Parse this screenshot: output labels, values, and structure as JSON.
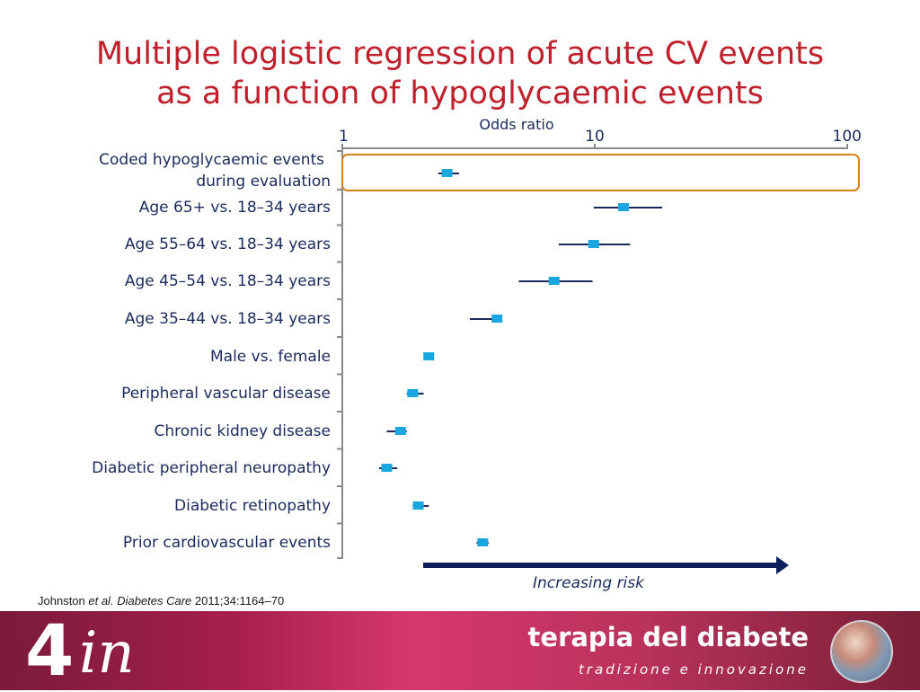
{
  "title": {
    "line1": "Multiple logistic regression of acute CV events",
    "line2": "as a function of hypoglycaemic events"
  },
  "chart_data": {
    "type": "forest",
    "xlabel": "Odds ratio",
    "xscale": "log",
    "xlim": [
      1,
      100
    ],
    "xticks": [
      "1",
      "10",
      "100"
    ],
    "rows": [
      {
        "label": [
          "Coded hypoglycaemic events",
          "during evaluation"
        ],
        "or": 2.6,
        "ci": [
          2.4,
          2.9
        ],
        "highlight": true
      },
      {
        "label": [
          "Age 65+ vs. 18–34 years"
        ],
        "or": 13.0,
        "ci": [
          9.9,
          18.5
        ]
      },
      {
        "label": [
          "Age 55–64 vs. 18–34 years"
        ],
        "or": 9.9,
        "ci": [
          7.2,
          13.8
        ]
      },
      {
        "label": [
          "Age 45–54 vs. 18–34 years"
        ],
        "or": 6.9,
        "ci": [
          5.0,
          9.8
        ]
      },
      {
        "label": [
          "Age 35–44 vs. 18–34 years"
        ],
        "or": 4.1,
        "ci": [
          3.2,
          4.3
        ]
      },
      {
        "label": [
          "Male vs. female"
        ],
        "or": 2.2,
        "ci": [
          2.1,
          2.3
        ]
      },
      {
        "label": [
          "Peripheral vascular disease"
        ],
        "or": 1.9,
        "ci": [
          1.8,
          2.1
        ]
      },
      {
        "label": [
          "Chronic kidney disease"
        ],
        "or": 1.7,
        "ci": [
          1.5,
          1.8
        ]
      },
      {
        "label": [
          "Diabetic peripheral neuropathy"
        ],
        "or": 1.5,
        "ci": [
          1.4,
          1.65
        ]
      },
      {
        "label": [
          "Diabetic retinopathy"
        ],
        "or": 2.0,
        "ci": [
          1.9,
          2.2
        ]
      },
      {
        "label": [
          "Prior cardiovascular events"
        ],
        "or": 3.6,
        "ci": [
          3.4,
          3.8
        ]
      }
    ],
    "annotation": "Increasing risk",
    "colors": {
      "marker": "#1aa7e0",
      "ci_line": "#1a2a5e",
      "highlight": "#d8821a",
      "arrow": "#0f1f5c",
      "axis": "#8a8a8a"
    }
  },
  "reference": {
    "author": "Johnston ",
    "etal": "et al.",
    "journal": "Diabetes Care",
    "citation": " 2011;34:1164–70"
  },
  "footer": {
    "logo_number": "4",
    "logo_suffix": "in",
    "brand": "terapia del diabete",
    "tagline": "tradizione e innovazione",
    "emblem_icon": "hospital-emblem-icon"
  }
}
